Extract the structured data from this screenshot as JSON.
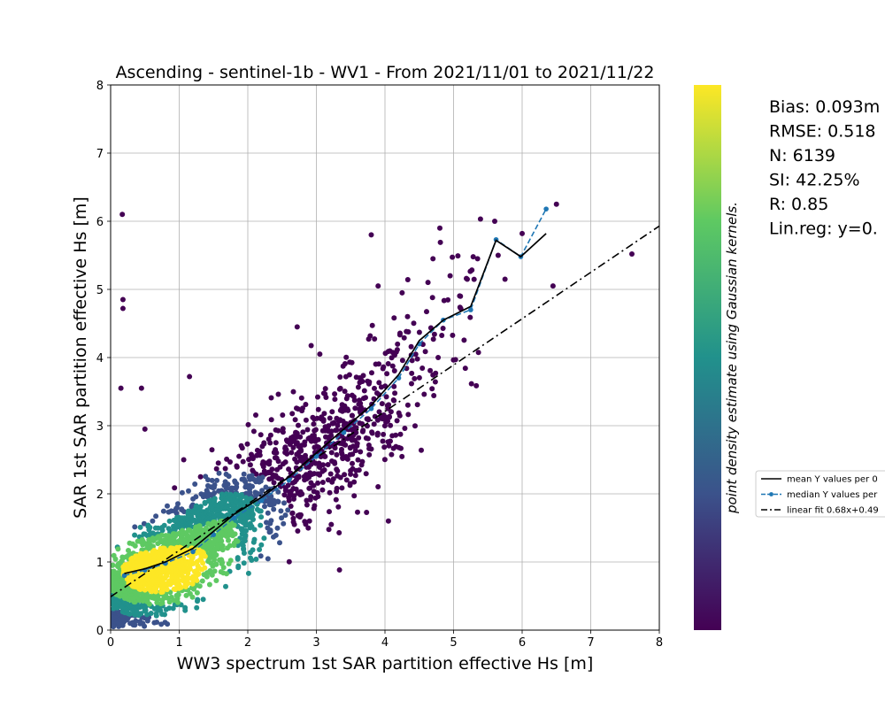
{
  "chart_data": {
    "type": "scatter",
    "title": "Ascending - sentinel-1b - WV1 - From 2021/11/01 to 2021/11/22",
    "xlabel": "WW3 spectrum 1st SAR partition effective Hs [m]",
    "ylabel": "SAR 1st SAR partition effective Hs [m]",
    "xlim": [
      0,
      8
    ],
    "ylim": [
      0,
      8
    ],
    "xticks": [
      "0",
      "1",
      "2",
      "3",
      "4",
      "5",
      "6",
      "7",
      "8"
    ],
    "yticks": [
      "0",
      "1",
      "2",
      "3",
      "4",
      "5",
      "6",
      "7",
      "8"
    ],
    "grid": true,
    "colorbar_label": "point density estimate using Gaussian kernels.",
    "colormap": [
      "#440154",
      "#3b528b",
      "#21918c",
      "#5ec962",
      "#fde725"
    ],
    "stats": [
      "Bias: 0.093m",
      "RMSE: 0.518",
      "N: 6139",
      "SI: 42.25%",
      "R: 0.85",
      "Lin.reg: y=0."
    ],
    "legend": {
      "position": "right",
      "entries": [
        {
          "label": "mean Y values per 0",
          "style": "solid",
          "color": "#000000"
        },
        {
          "label": "median Y values per",
          "style": "dashed-markers",
          "color": "#1f77b4"
        },
        {
          "label": "linear fit 0.68x+0.49",
          "style": "dashdot",
          "color": "#000000"
        }
      ]
    },
    "series": [
      {
        "name": "mean Y values per 0",
        "x": [
          0.2,
          0.5,
          0.8,
          1.2,
          1.5,
          1.8,
          2.2,
          2.6,
          3.0,
          3.4,
          3.8,
          4.2,
          4.5,
          4.85,
          5.25,
          5.62,
          5.98,
          6.35
        ],
        "y": [
          0.83,
          0.9,
          1.0,
          1.2,
          1.45,
          1.7,
          1.95,
          2.25,
          2.6,
          2.95,
          3.3,
          3.75,
          4.25,
          4.55,
          4.75,
          5.72,
          5.48,
          5.82
        ]
      },
      {
        "name": "median Y values per",
        "x": [
          0.2,
          0.5,
          0.8,
          1.2,
          1.5,
          1.8,
          2.2,
          2.6,
          3.0,
          3.4,
          3.8,
          4.2,
          4.5,
          4.85,
          5.25,
          5.62,
          5.98,
          6.35
        ],
        "y": [
          0.8,
          0.88,
          0.98,
          1.15,
          1.4,
          1.65,
          1.9,
          2.2,
          2.55,
          2.9,
          3.25,
          3.7,
          4.2,
          4.55,
          4.7,
          5.73,
          5.48,
          6.18
        ]
      },
      {
        "name": "linear fit 0.68x+0.49",
        "x": [
          0,
          8
        ],
        "y": [
          0.49,
          5.93
        ]
      }
    ],
    "outliers": {
      "x": [
        0.17,
        0.18,
        0.18,
        0.15,
        0.45,
        1.15,
        0.5,
        3.05,
        2.72,
        3.8,
        4.8,
        4.7,
        4.95,
        5.2,
        5.1,
        5.35,
        5.65,
        6.0,
        6.5,
        7.6,
        5.6,
        5.75,
        3.9,
        4.05,
        3.6,
        4.25,
        6.45
      ],
      "y": [
        6.1,
        4.85,
        4.72,
        3.55,
        3.55,
        3.72,
        2.95,
        4.05,
        4.45,
        5.8,
        5.9,
        5.45,
        5.2,
        5.15,
        4.9,
        5.45,
        5.5,
        5.82,
        6.25,
        5.52,
        6.0,
        5.15,
        5.05,
        1.6,
        1.73,
        4.95,
        5.05
      ]
    }
  }
}
